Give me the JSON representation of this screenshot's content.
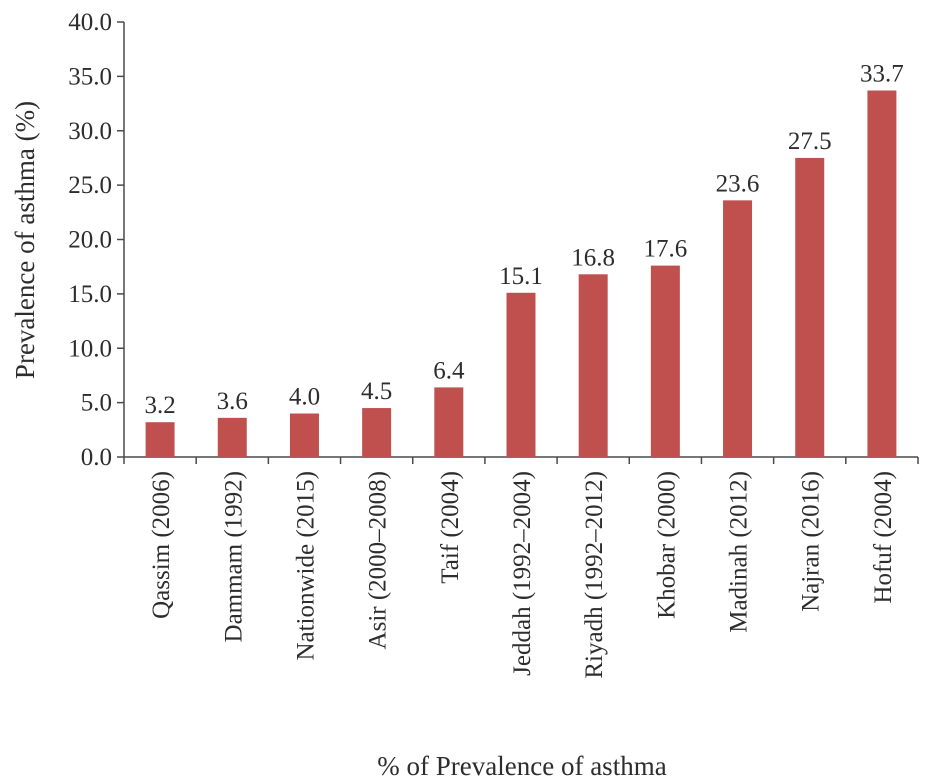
{
  "chart_data": {
    "type": "bar",
    "title": "",
    "xlabel": "% of Prevalence of asthma",
    "ylabel": "Prevalence of asthma (%)",
    "ylim": [
      0,
      40
    ],
    "ytick_labels": [
      "0.0",
      "5.0",
      "10.0",
      "15.0",
      "20.0",
      "25.0",
      "30.0",
      "35.0",
      "40.0"
    ],
    "categories": [
      "Qassim (2006)",
      "Dammam (1992)",
      "Nationwide (2015)",
      "Asir (2000–2008)",
      "Taif (2004)",
      "Jeddah (1992–2004)",
      "Riyadh (1992–2012)",
      "Khobar (2000)",
      "Madinah (2012)",
      "Najran (2016)",
      "Hofuf (2004)"
    ],
    "values": [
      3.2,
      3.6,
      4.0,
      4.5,
      6.4,
      15.1,
      16.8,
      17.6,
      23.6,
      27.5,
      33.7
    ],
    "value_labels": [
      "3.2",
      "3.6",
      "4.0",
      "4.5",
      "6.4",
      "15.1",
      "16.8",
      "17.6",
      "23.6",
      "27.5",
      "33.7"
    ],
    "bar_color": "#c0504d",
    "grid": false,
    "legend": "none"
  }
}
